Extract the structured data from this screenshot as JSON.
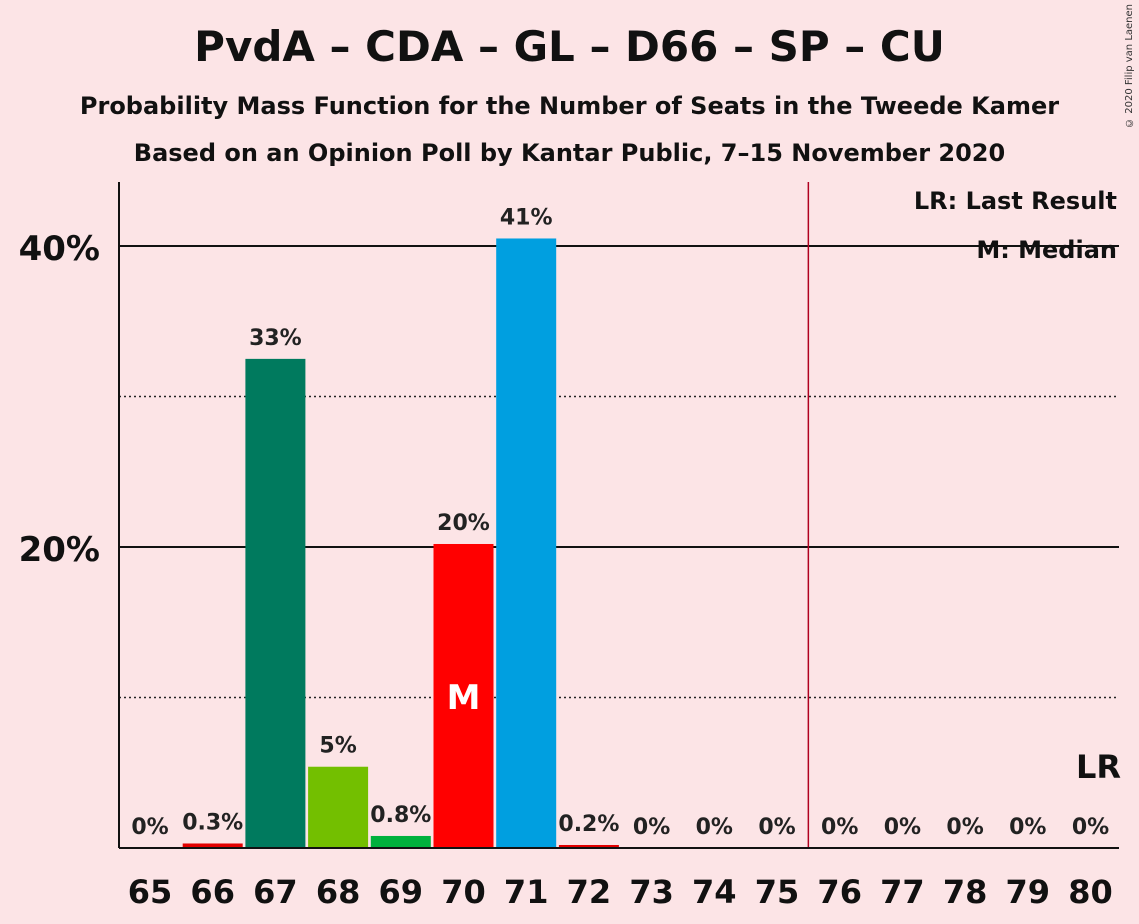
{
  "title": "PvdA – CDA – GL – D66 – SP – CU",
  "subtitle": "Probability Mass Function for the Number of Seats in the Tweede Kamer",
  "subtitle2": "Based on an Opinion Poll by Kantar Public, 7–15 November 2020",
  "copyright": "© 2020 Filip van Laenen",
  "legend": {
    "last_result": "LR: Last Result",
    "median": "M: Median"
  },
  "chart_data": {
    "type": "bar",
    "categories": [
      "65",
      "66",
      "67",
      "68",
      "69",
      "70",
      "71",
      "72",
      "73",
      "74",
      "75",
      "76",
      "77",
      "78",
      "79",
      "80"
    ],
    "values": [
      0,
      0.3,
      32.5,
      5.4,
      0.8,
      20.2,
      40.5,
      0.2,
      0,
      0,
      0,
      0,
      0,
      0,
      0,
      0
    ],
    "labels": [
      "0%",
      "0.3%",
      "33%",
      "5%",
      "0.8%",
      "20%",
      "41%",
      "0.2%",
      "0%",
      "0%",
      "0%",
      "0%",
      "0%",
      "0%",
      "0%",
      "0%"
    ],
    "bar_colors": [
      "#e10000",
      "#e10000",
      "#007a5e",
      "#73bf00",
      "#00b13d",
      "#ff0000",
      "#009fe0",
      "#e10000",
      "#e10000",
      "#e10000",
      "#e10000",
      "#e10000",
      "#e10000",
      "#e10000",
      "#e10000",
      "#e10000"
    ],
    "ylim": [
      0,
      44
    ],
    "yticks_major": [
      20,
      40
    ],
    "ytick_labels": [
      "20%",
      "40%"
    ],
    "yticks_minor": [
      10,
      30
    ],
    "median_seat": "70",
    "median_label": "M",
    "majority_line_between": [
      "75",
      "76"
    ],
    "last_result_seat": "80",
    "last_result_label": "LR",
    "majority_line_color": "#b00020",
    "grid": true,
    "legend_position": "top-right"
  }
}
